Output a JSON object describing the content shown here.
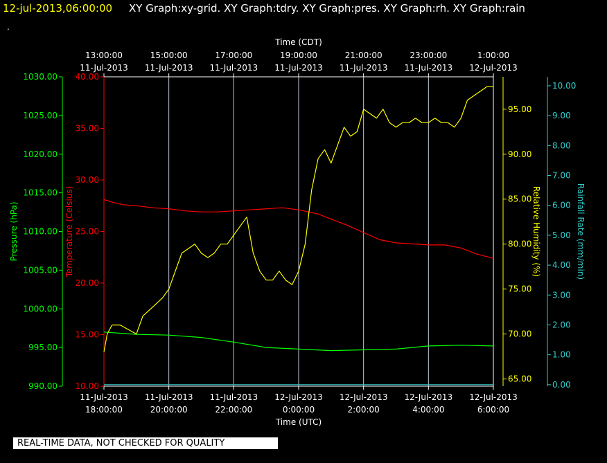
{
  "header": {
    "datetime": "12-jul-2013,06:00:00",
    "graphs": "XY Graph:xy-grid.  XY Graph:tdry.  XY Graph:pres.  XY Graph:rh.  XY Graph:rain",
    "dot": "."
  },
  "footer": {
    "quality_note": "REAL-TIME DATA, NOT CHECKED FOR QUALITY"
  },
  "colors": {
    "background": "#000000",
    "grid": "#bfc8d8",
    "frame": "#ffffff",
    "temperature": "#ff0000",
    "pressure": "#00ff00",
    "humidity": "#ffff00",
    "rain": "#33cccc"
  },
  "chart_data": {
    "type": "line",
    "x_axis_bottom": {
      "label": "Time (UTC)",
      "ticks": [
        {
          "date": "11-Jul-2013",
          "time": "18:00:00"
        },
        {
          "date": "11-Jul-2013",
          "time": "20:00:00"
        },
        {
          "date": "11-Jul-2013",
          "time": "22:00:00"
        },
        {
          "date": "12-Jul-2013",
          "time": "0:00:00"
        },
        {
          "date": "12-Jul-2013",
          "time": "2:00:00"
        },
        {
          "date": "12-Jul-2013",
          "time": "4:00:00"
        },
        {
          "date": "12-Jul-2013",
          "time": "6:00:00"
        }
      ]
    },
    "x_axis_top": {
      "label": "Time (CDT)",
      "ticks": [
        {
          "time": "13:00:00",
          "date": "11-Jul-2013"
        },
        {
          "time": "15:00:00",
          "date": "11-Jul-2013"
        },
        {
          "time": "17:00:00",
          "date": "11-Jul-2013"
        },
        {
          "time": "19:00:00",
          "date": "11-Jul-2013"
        },
        {
          "time": "21:00:00",
          "date": "11-Jul-2013"
        },
        {
          "time": "23:00:00",
          "date": "11-Jul-2013"
        },
        {
          "time": "1:00:00",
          "date": "12-Jul-2013"
        }
      ]
    },
    "y_axes": {
      "pressure": {
        "label": "Pressure (hPa)",
        "min": 990,
        "max": 1030,
        "ticks": [
          "990.00",
          "995.00",
          "1000.00",
          "1005.00",
          "1010.00",
          "1015.00",
          "1020.00",
          "1025.00",
          "1030.00"
        ]
      },
      "temperature": {
        "label": "Temperature (Celsius)",
        "min": 10,
        "max": 40,
        "ticks": [
          "10.00",
          "15.00",
          "20.00",
          "25.00",
          "30.00",
          "35.00",
          "40.00"
        ]
      },
      "humidity": {
        "label": "Relative Humidity (%)",
        "min": 64.2,
        "max": 98.6,
        "ticks": [
          "65.00",
          "70.00",
          "75.00",
          "80.00",
          "85.00",
          "90.00",
          "95.00"
        ]
      },
      "rain": {
        "label": "Rainfall Rate (mm/min)",
        "min": -0.05,
        "max": 10.3,
        "ticks": [
          "0.00",
          "1.00",
          "2.00",
          "3.00",
          "4.00",
          "5.00",
          "6.00",
          "7.00",
          "8.00",
          "9.00",
          "10.00"
        ]
      }
    },
    "x_range_hours": [
      0,
      12
    ],
    "grid": true,
    "series": [
      {
        "name": "Temperature (Celsius)",
        "axis": "temperature",
        "color": "#ff0000",
        "x": [
          0,
          0.3,
          0.6,
          1,
          1.5,
          2,
          2.5,
          3,
          3.5,
          4,
          4.5,
          5,
          5.5,
          6,
          6.3,
          6.6,
          7,
          7.5,
          8,
          8.5,
          9,
          9.5,
          10,
          10.5,
          11,
          11.5,
          12
        ],
        "y": [
          28.1,
          27.8,
          27.6,
          27.5,
          27.3,
          27.2,
          27.0,
          26.9,
          26.9,
          27.0,
          27.1,
          27.2,
          27.3,
          27.1,
          26.9,
          26.7,
          26.2,
          25.6,
          24.9,
          24.2,
          23.9,
          23.8,
          23.7,
          23.7,
          23.4,
          22.8,
          22.4
        ]
      },
      {
        "name": "Pressure (hPa)",
        "axis": "pressure",
        "color": "#00ff00",
        "x": [
          0,
          1,
          2,
          3,
          4,
          5,
          6,
          7,
          8,
          9,
          10,
          11,
          12
        ],
        "y": [
          997.0,
          996.7,
          996.6,
          996.3,
          995.7,
          995.0,
          994.8,
          994.6,
          994.7,
          994.8,
          995.2,
          995.3,
          995.2
        ]
      },
      {
        "name": "Relative Humidity (%)",
        "axis": "humidity",
        "color": "#ffff00",
        "x": [
          0,
          0.1,
          0.25,
          0.5,
          1,
          1.2,
          1.5,
          1.8,
          2,
          2.2,
          2.4,
          2.6,
          2.8,
          3,
          3.2,
          3.4,
          3.6,
          3.8,
          4.0,
          4.2,
          4.4,
          4.6,
          4.8,
          5,
          5.2,
          5.4,
          5.6,
          5.8,
          6,
          6.2,
          6.4,
          6.6,
          6.8,
          7,
          7.2,
          7.4,
          7.6,
          7.8,
          8.0,
          8.2,
          8.4,
          8.6,
          8.8,
          9.0,
          9.2,
          9.4,
          9.6,
          9.8,
          10.0,
          10.2,
          10.4,
          10.6,
          10.8,
          11.0,
          11.2,
          11.4,
          11.6,
          11.8,
          12
        ],
        "y": [
          68,
          70,
          71,
          71,
          70,
          72,
          73,
          74,
          75,
          77,
          79,
          79.5,
          80,
          79,
          78.5,
          79,
          80,
          80,
          81,
          82,
          83,
          79,
          77,
          76,
          76,
          77,
          76,
          75.5,
          77,
          80,
          86,
          89.5,
          90.5,
          89,
          91,
          93,
          92,
          92.5,
          95,
          94.5,
          94,
          95,
          93.5,
          93,
          93.5,
          93.5,
          94,
          93.5,
          93.5,
          94,
          93.5,
          93.5,
          93,
          94,
          96,
          96.5,
          97,
          97.5,
          97.5
        ]
      },
      {
        "name": "Rainfall Rate (mm/min)",
        "axis": "rain",
        "color": "#33cccc",
        "x": [
          0,
          12
        ],
        "y": [
          0.0,
          0.0
        ]
      }
    ]
  }
}
